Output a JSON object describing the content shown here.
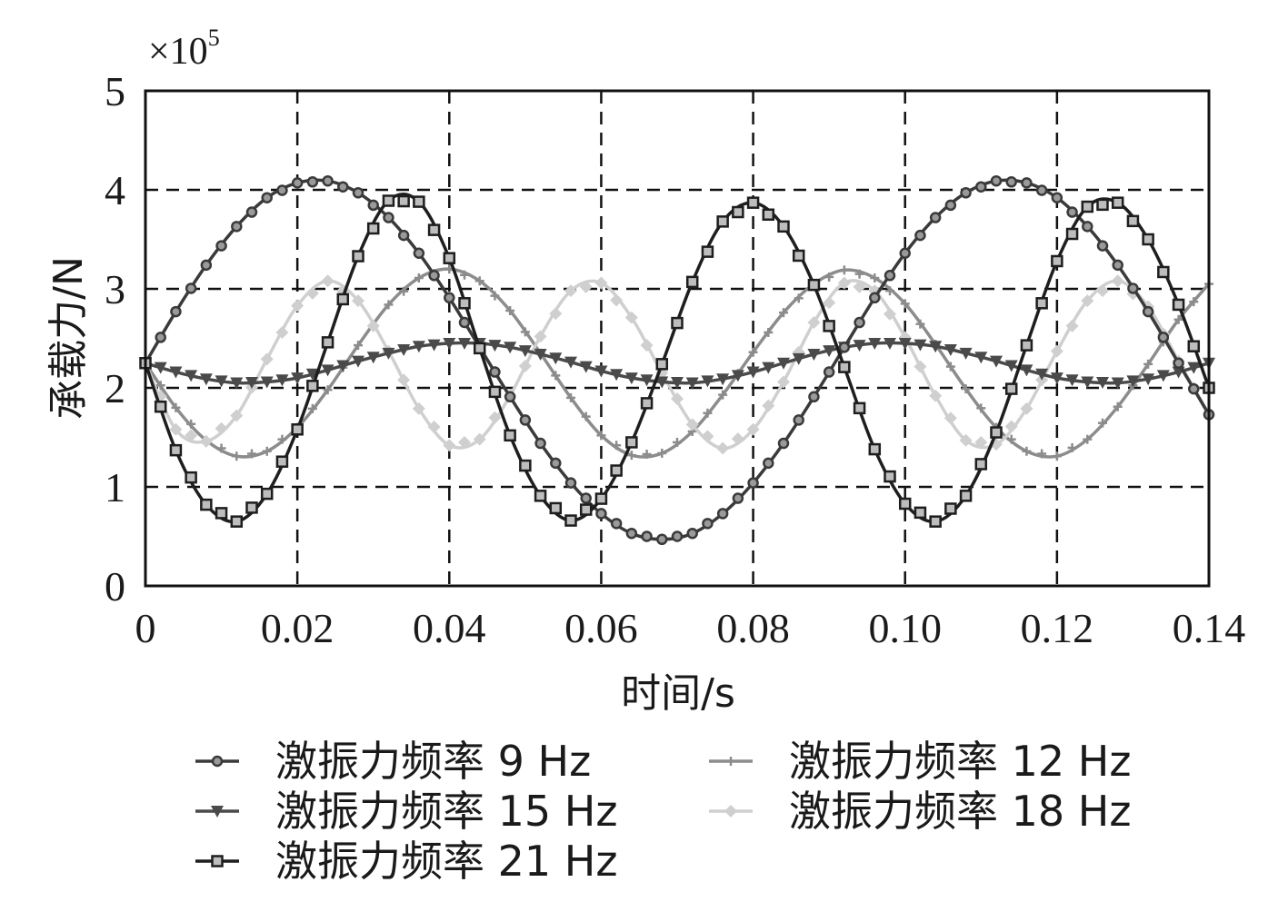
{
  "chart_data": {
    "type": "line",
    "title": "",
    "xlabel": "时间/s",
    "ylabel": "承载力/N",
    "y_multiplier": {
      "base": "×10",
      "exponent": "5"
    },
    "xlim": [
      0,
      0.14
    ],
    "ylim": [
      0,
      5
    ],
    "x_ticks": [
      0,
      0.02,
      0.04,
      0.06,
      0.08,
      0.1,
      0.12,
      0.14
    ],
    "x_tick_labels": [
      "0",
      "0.02",
      "0.04",
      "0.06",
      "0.08",
      "0.10",
      "0.12",
      "0.14"
    ],
    "y_ticks": [
      0,
      1,
      2,
      3,
      4,
      5
    ],
    "y_tick_labels": [
      "0",
      "1",
      "2",
      "3",
      "4",
      "5"
    ],
    "grid": true,
    "grid_style": "dashed",
    "legend_position": "bottom",
    "x": [
      0,
      0.004,
      0.008,
      0.012,
      0.016,
      0.02,
      0.024,
      0.028,
      0.032,
      0.036,
      0.04,
      0.044,
      0.048,
      0.052,
      0.056,
      0.06,
      0.064,
      0.068,
      0.072,
      0.076,
      0.08,
      0.084,
      0.088,
      0.092,
      0.096,
      0.1,
      0.104,
      0.108,
      0.112,
      0.116,
      0.12,
      0.124,
      0.128,
      0.132,
      0.136,
      0.14
    ],
    "series": [
      {
        "name": "激振力频率 9 Hz",
        "color": "#3a3a3a",
        "marker": "circle",
        "values": [
          2.25,
          2.77,
          3.24,
          3.63,
          3.92,
          4.07,
          4.09,
          3.97,
          3.72,
          3.36,
          2.91,
          2.41,
          1.91,
          1.44,
          1.04,
          0.73,
          0.53,
          0.47,
          0.53,
          0.73,
          1.04,
          1.44,
          1.91,
          2.41,
          2.91,
          3.36,
          3.72,
          3.97,
          4.09,
          4.07,
          3.92,
          3.63,
          3.24,
          2.77,
          2.25,
          1.73
        ]
      },
      {
        "name": "激振力频率 15 Hz",
        "color": "#4a4a4a",
        "marker": "triangle-down",
        "values": [
          2.25,
          2.16,
          2.09,
          2.05,
          2.06,
          2.1,
          2.18,
          2.27,
          2.35,
          2.42,
          2.45,
          2.45,
          2.41,
          2.34,
          2.26,
          2.17,
          2.1,
          2.06,
          2.05,
          2.09,
          2.16,
          2.25,
          2.34,
          2.41,
          2.45,
          2.45,
          2.42,
          2.35,
          2.27,
          2.18,
          2.1,
          2.06,
          2.05,
          2.09,
          2.16,
          2.25
        ]
      },
      {
        "name": "激振力频率 21 Hz",
        "color": "#1e1e1e",
        "marker": "square",
        "values": [
          2.25,
          1.37,
          0.82,
          0.65,
          0.93,
          1.58,
          2.46,
          3.33,
          3.89,
          3.88,
          3.31,
          2.4,
          1.52,
          0.91,
          0.66,
          0.88,
          1.45,
          2.24,
          3.07,
          3.68,
          3.87,
          3.63,
          3.04,
          2.21,
          1.38,
          0.83,
          0.65,
          0.91,
          1.55,
          2.43,
          3.28,
          3.83,
          3.87,
          3.5,
          2.84,
          2.0
        ]
      },
      {
        "name": "激振力频率 12 Hz",
        "color": "#8c8c8c",
        "marker": "plus",
        "values": [
          2.25,
          1.8,
          1.47,
          1.31,
          1.36,
          1.6,
          1.98,
          2.43,
          2.84,
          3.11,
          3.2,
          3.08,
          2.78,
          2.35,
          1.9,
          1.52,
          1.32,
          1.34,
          1.56,
          1.93,
          2.36,
          2.76,
          3.05,
          3.19,
          3.11,
          2.85,
          2.44,
          1.99,
          1.6,
          1.36,
          1.31,
          1.48,
          1.81,
          2.24,
          2.69,
          3.05
        ]
      },
      {
        "name": "激振力频率 18 Hz",
        "color": "#cfcfcf",
        "marker": "diamond",
        "values": [
          2.25,
          1.58,
          1.46,
          1.72,
          2.29,
          2.83,
          3.08,
          2.88,
          2.37,
          1.79,
          1.42,
          1.48,
          1.92,
          2.52,
          2.98,
          3.06,
          2.71,
          2.15,
          1.63,
          1.39,
          1.58,
          2.06,
          2.66,
          3.06,
          2.98,
          2.51,
          1.92,
          1.47,
          1.43,
          1.79,
          2.37,
          2.88,
          3.08,
          2.82,
          2.27,
          1.73
        ]
      }
    ]
  }
}
